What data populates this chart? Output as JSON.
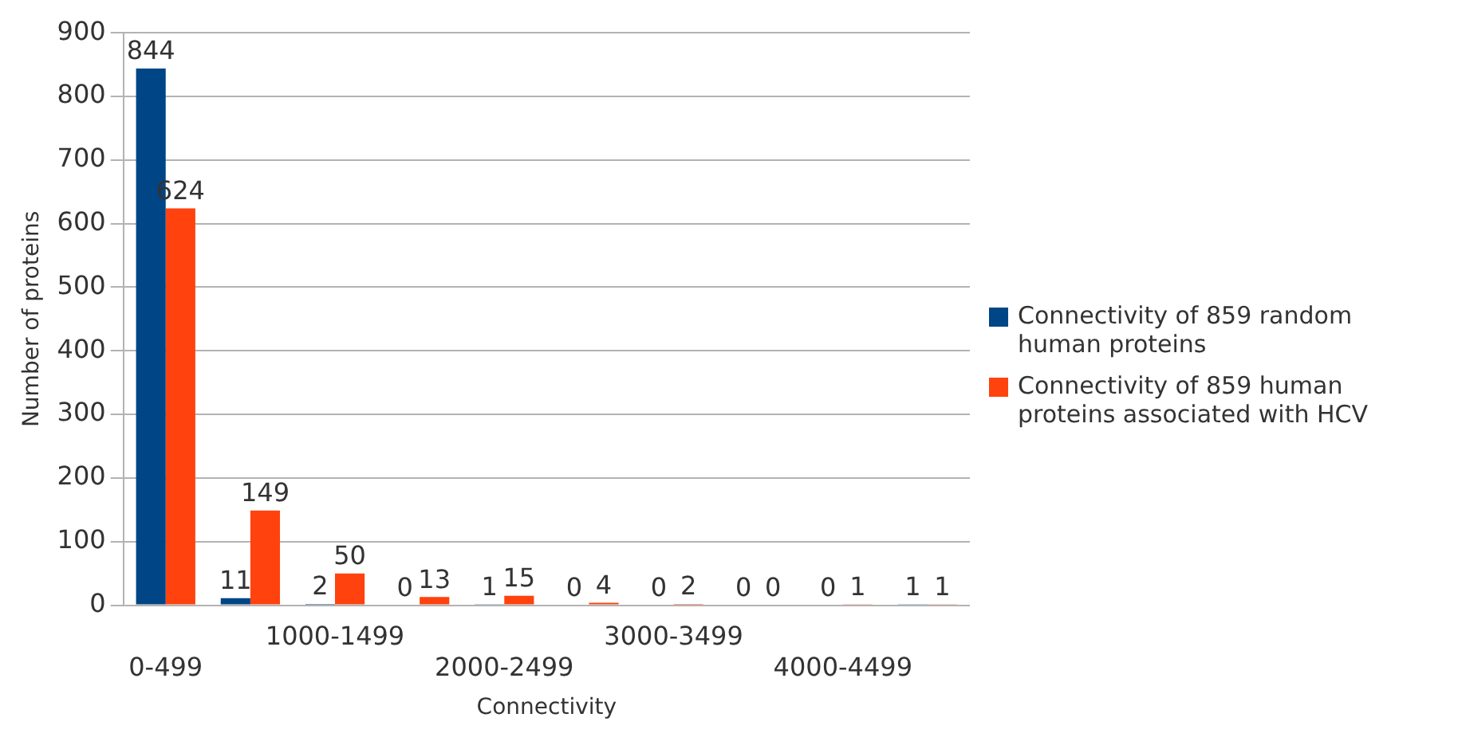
{
  "chart_data": {
    "type": "bar",
    "xlabel": "Connectivity",
    "ylabel": "Number of proteins",
    "categories": [
      "0-499",
      null,
      "1000-1499",
      null,
      "2000-2499",
      null,
      "3000-3499",
      null,
      "4000-4499",
      null
    ],
    "series": [
      {
        "name": "Connectivity of 859 random human proteins",
        "color": "#004586",
        "values": [
          844,
          11,
          2,
          0,
          1,
          0,
          0,
          0,
          0,
          1
        ]
      },
      {
        "name": "Connectivity of 859 human proteins associated with HCV",
        "color": "#ff420e",
        "values": [
          624,
          149,
          50,
          13,
          15,
          4,
          2,
          0,
          1,
          1
        ]
      }
    ],
    "ylim": [
      0,
      900
    ],
    "yticks": [
      0,
      100,
      200,
      300,
      400,
      500,
      600,
      700,
      800,
      900
    ],
    "grid": "y",
    "legend": "right",
    "data_labels": true
  }
}
